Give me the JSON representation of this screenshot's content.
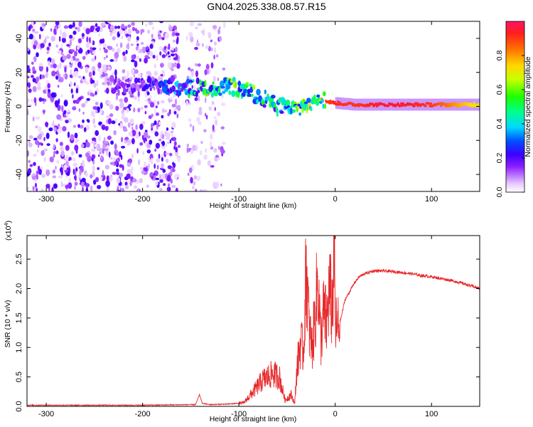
{
  "title": "GN04.2025.338.08.57.R15",
  "chart_data": [
    {
      "type": "heatmap",
      "title": "GN04.2025.338.08.57.R15",
      "xlabel": "Height of straight line (km)",
      "ylabel": "Frequency (Hz)",
      "xlim": [
        -320,
        150
      ],
      "ylim": [
        -50,
        50
      ],
      "xticks": [
        -300,
        -200,
        -100,
        0,
        100
      ],
      "xtick_labels": [
        "-300",
        "-200",
        "-100",
        "0",
        "100"
      ],
      "yticks": [
        -40,
        -20,
        0,
        20,
        40
      ],
      "ytick_labels": [
        "-40",
        "-20",
        "0",
        "20",
        "40"
      ],
      "colorbar": {
        "label": "Normalized spectral amplitude",
        "range": [
          0,
          1
        ],
        "ticks": [
          0.0,
          0.2,
          0.4,
          0.6,
          0.8
        ],
        "tick_labels": [
          "0.0",
          "0.2",
          "0.4",
          "0.6",
          "0.8"
        ]
      },
      "ridge": {
        "description": "frequency centroid of the dominant spectral band vs height",
        "x": [
          -240,
          -200,
          -170,
          -150,
          -130,
          -110,
          -95,
          -80,
          -70,
          -60,
          -50,
          -40,
          -30,
          -20,
          -15,
          -10,
          0,
          20,
          60,
          100,
          150
        ],
        "freq": [
          13,
          11,
          12,
          11,
          11,
          12,
          10,
          6,
          4,
          0,
          1,
          -2,
          1,
          3,
          6,
          3,
          2,
          1,
          1,
          1,
          1
        ],
        "amplitude": [
          0.15,
          0.2,
          0.3,
          0.5,
          0.55,
          0.6,
          0.65,
          0.55,
          0.5,
          0.5,
          0.45,
          0.55,
          0.75,
          0.8,
          0.85,
          0.9,
          0.92,
          0.9,
          0.95,
          0.9,
          0.7
        ]
      },
      "noise_regions": [
        {
          "x_from": -320,
          "x_to": -162,
          "level": "high"
        },
        {
          "x_from": -155,
          "x_to": -115,
          "level": "medium"
        }
      ]
    },
    {
      "type": "line",
      "xlabel": "Height of straight line (km)",
      "ylabel": "SNR (10 * v/v)",
      "y_scale_label": "(x10",
      "y_scale_exponent": "4",
      "xlim": [
        -320,
        150
      ],
      "ylim": [
        0,
        2.9
      ],
      "xticks": [
        -300,
        -200,
        -100,
        0,
        100
      ],
      "xtick_labels": [
        "-300",
        "-200",
        "-100",
        "0",
        "100"
      ],
      "yticks": [
        0.0,
        0.5,
        1.0,
        1.5,
        2.0,
        2.5
      ],
      "ytick_labels": [
        "0.0",
        "0.5",
        "1.0",
        "1.5",
        "2.0",
        "2.5"
      ],
      "series": [
        {
          "name": "SNR",
          "color": "#e8292b",
          "x": [
            -320,
            -200,
            -145,
            -141,
            -138,
            -130,
            -110,
            -95,
            -85,
            -75,
            -65,
            -58,
            -52,
            -46,
            -42,
            -40,
            -36,
            -33,
            -30,
            -27,
            -24,
            -21,
            -18,
            -15,
            -12,
            -9,
            -6,
            -3,
            -1,
            0,
            2,
            6,
            10,
            15,
            20,
            25,
            30,
            40,
            50,
            60,
            70,
            80,
            90,
            100,
            110,
            120,
            130,
            140,
            150
          ],
          "values": [
            0.02,
            0.02,
            0.03,
            0.2,
            0.05,
            0.03,
            0.04,
            0.06,
            0.25,
            0.45,
            0.55,
            0.5,
            0.1,
            0.2,
            0.05,
            0.6,
            1.1,
            0.9,
            2.4,
            1.3,
            1.0,
            1.5,
            2.2,
            1.1,
            1.6,
            1.4,
            2.0,
            1.6,
            2.9,
            1.4,
            1.3,
            1.5,
            1.8,
            1.95,
            2.1,
            2.2,
            2.25,
            2.3,
            2.3,
            2.29,
            2.27,
            2.25,
            2.22,
            2.2,
            2.17,
            2.14,
            2.1,
            2.05,
            2.0
          ]
        }
      ]
    }
  ]
}
